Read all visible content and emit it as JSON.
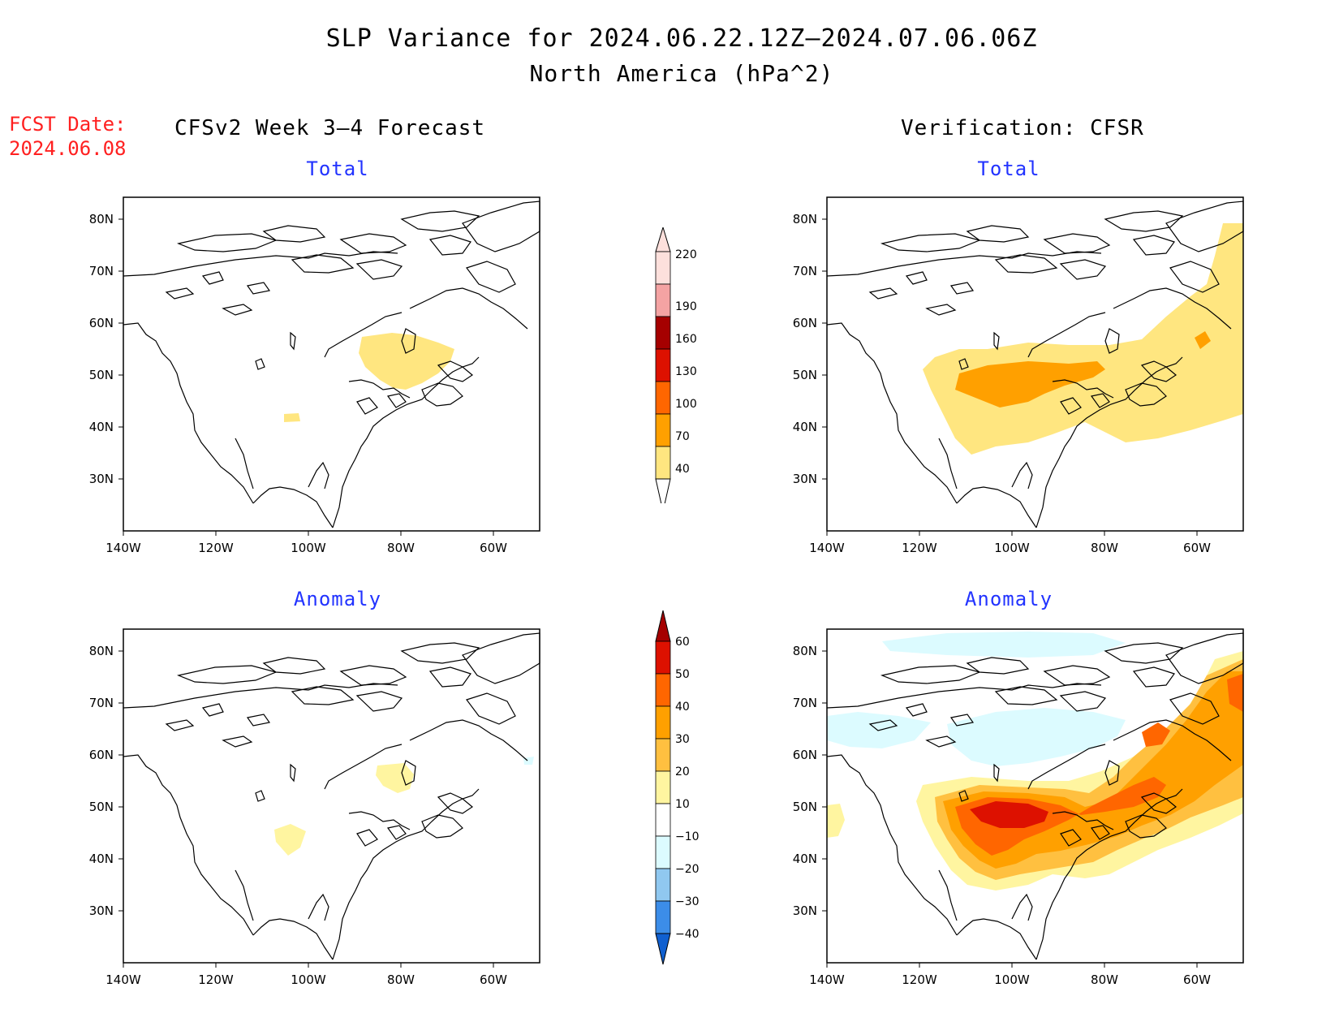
{
  "title": "SLP Variance for 2024.06.22.12Z—2024.07.06.06Z",
  "subtitle": "North America (hPa^2)",
  "fcst_date_label": "FCST Date:",
  "fcst_date_value": "2024.06.08",
  "left_header": "CFSv2 Week 3—4 Forecast",
  "right_header": "Verification: CFSR",
  "panels": [
    {
      "title": "Total"
    },
    {
      "title": "Total"
    },
    {
      "title": "Anomaly"
    },
    {
      "title": "Anomaly"
    }
  ],
  "axes": {
    "lat_labels": [
      "80N",
      "70N",
      "60N",
      "50N",
      "40N",
      "30N"
    ],
    "lon_labels": [
      "140W",
      "120W",
      "100W",
      "80W",
      "60W"
    ]
  },
  "colorbar_total": {
    "levels": [
      "220",
      "190",
      "160",
      "130",
      "100",
      "70",
      "40"
    ],
    "colors": [
      "#fde0dc",
      "#f4a3a3",
      "#a50000",
      "#dd1100",
      "#ff6600",
      "#ffa000",
      "#ffe680"
    ]
  },
  "colorbar_anomaly": {
    "levels": [
      "60",
      "50",
      "40",
      "30",
      "20",
      "10",
      "−10",
      "−20",
      "−30",
      "−40"
    ],
    "colors": [
      "#a50000",
      "#dd1100",
      "#ff6600",
      "#ffa000",
      "#ffc040",
      "#fff5a0",
      "#ffffff",
      "#dcfbff",
      "#90c8f0",
      "#3c8de8",
      "#1060d0"
    ]
  },
  "colors": {
    "fill_40": "#ffe680",
    "fill_70": "#ffa000",
    "fill_100": "#ff6600",
    "anom_10": "#fff5a0",
    "anom_20": "#ffc040",
    "anom_30": "#ffa000",
    "anom_40": "#ff6600",
    "anom_50": "#dd1100",
    "anom_neg10": "#dcfbff"
  }
}
